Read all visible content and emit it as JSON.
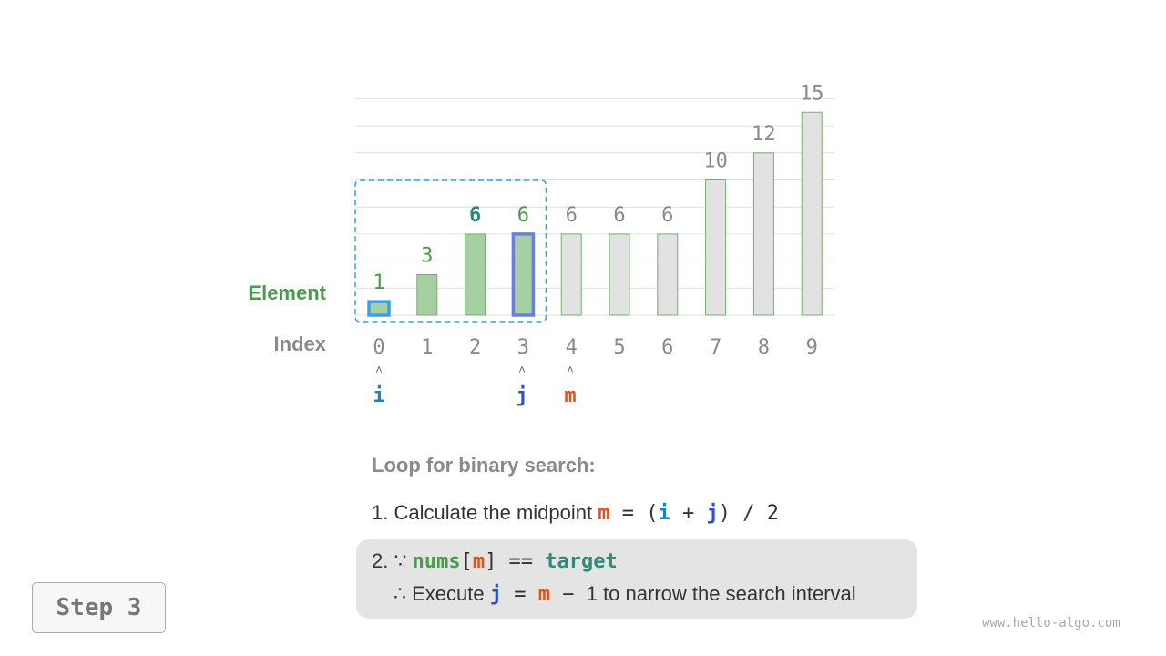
{
  "labels": {
    "element": "Element",
    "index": "Index"
  },
  "array": {
    "values": [
      1,
      3,
      6,
      6,
      6,
      6,
      6,
      10,
      12,
      15
    ],
    "indices": [
      "0",
      "1",
      "2",
      "3",
      "4",
      "5",
      "6",
      "7",
      "8",
      "9"
    ],
    "active_range": [
      0,
      3
    ],
    "target_index": 2
  },
  "pointers": {
    "i": {
      "label": "i",
      "index": 0
    },
    "j": {
      "label": "j",
      "index": 3
    },
    "m": {
      "label": "m",
      "index": 4
    },
    "arrow": "˄"
  },
  "explanation": {
    "title": "Loop for binary search:",
    "line1_prefix": "1. Calculate the midpoint ",
    "line1_m": "m",
    "line1_eq": " = (",
    "line1_i": "i",
    "line1_plus": " + ",
    "line1_j": "j",
    "line1_rest": ") / 2",
    "line2_prefix": "2. ∵ ",
    "line2_nums": "nums",
    "line2_lb": "[",
    "line2_m": "m",
    "line2_rb": "] == ",
    "line2_target": "target",
    "line3_prefix": "∴ Execute ",
    "line3_j": "j",
    "line3_eq": " = ",
    "line3_m": "m",
    "line3_minus": " − ",
    "line3_rest": "1 to narrow the search interval"
  },
  "step": "Step 3",
  "watermark": "www.hello-algo.com",
  "colors": {
    "active_bar": "#a6cfa3",
    "inactive_bar": "#e2e2e2",
    "bar_border": "#6fb36c",
    "i": "#3aa0e6",
    "j": "#6a7fdc",
    "m": "#e6521f"
  }
}
